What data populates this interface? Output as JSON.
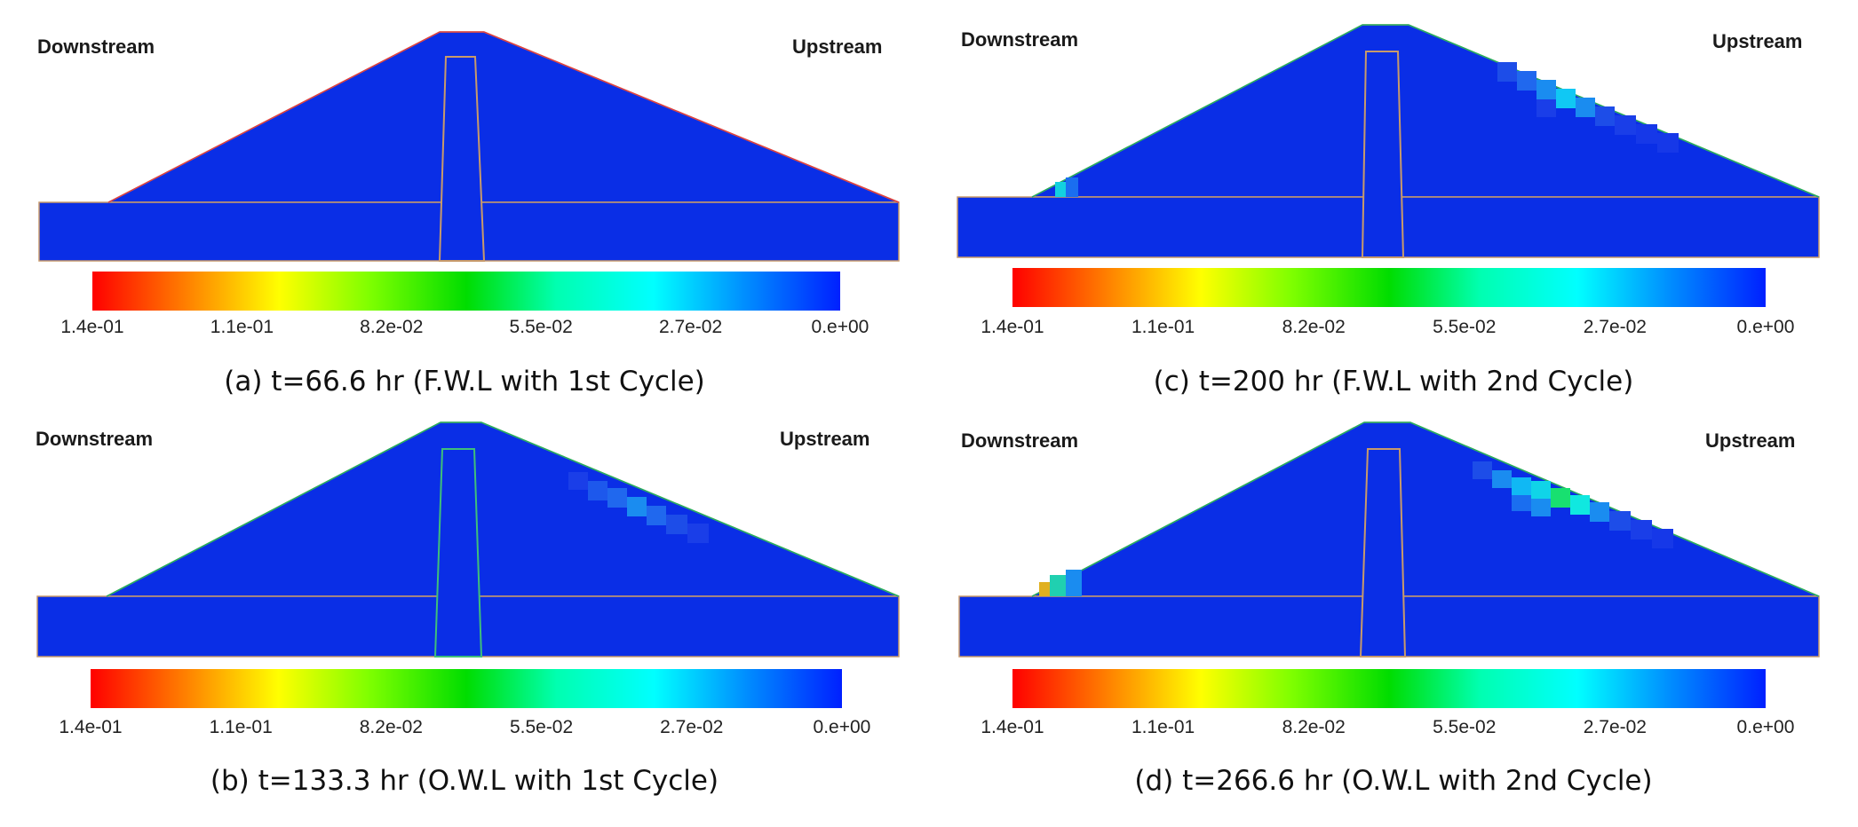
{
  "colorbar": {
    "ticks": [
      "1.4e-01",
      "1.1e-01",
      "8.2e-02",
      "5.5e-02",
      "2.7e-02",
      "0.e+00"
    ],
    "colors": [
      "#ff0000",
      "#ffff00",
      "#00dd00",
      "#00ffff",
      "#0020ff"
    ]
  },
  "panels": [
    {
      "id": "a",
      "downstream": "Downstream",
      "upstream": "Upstream",
      "caption": "(a) t=66.6 hr (F.W.L with 1st Cycle)"
    },
    {
      "id": "c",
      "downstream": "Downstream",
      "upstream": "Upstream",
      "caption": "(c) t=200 hr (F.W.L with 2nd Cycle)"
    },
    {
      "id": "b",
      "downstream": "Downstream",
      "upstream": "Upstream",
      "caption": "(b) t=133.3 hr (O.W.L with 1st Cycle)"
    },
    {
      "id": "d",
      "downstream": "Downstream",
      "upstream": "Upstream",
      "caption": "(d) t=266.6 hr (O.W.L with 2nd Cycle)"
    }
  ]
}
